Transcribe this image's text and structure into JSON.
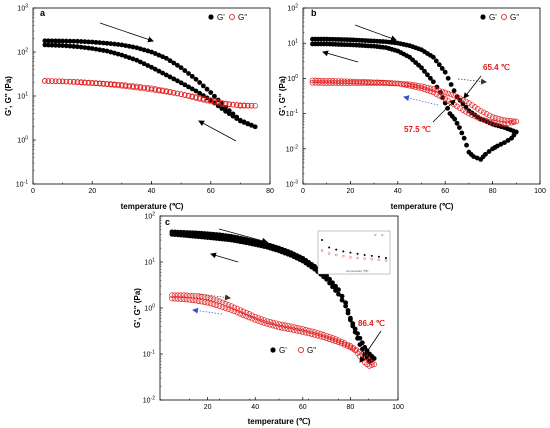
{
  "chart_data": [
    {
      "panel": "a",
      "type": "scatter",
      "xlabel": "temperature (℃)",
      "ylabel": "G', G'' (Pa)",
      "xlim": [
        0,
        80
      ],
      "ylim": [
        0.1,
        1000
      ],
      "yscale": "log",
      "xticks": [
        "0",
        "20",
        "40",
        "60",
        "80"
      ],
      "yticks": [
        {
          "v": 0.1,
          "b": "10",
          "e": "-1"
        },
        {
          "v": 1,
          "b": "10",
          "e": "0"
        },
        {
          "v": 10,
          "b": "10",
          "e": "1"
        },
        {
          "v": 100,
          "b": "10",
          "e": "2"
        },
        {
          "v": 1000,
          "b": "10",
          "e": "3"
        }
      ],
      "legend": {
        "position": "top-right",
        "entries": [
          "G'",
          "G''"
        ]
      },
      "series": [
        {
          "name": "G'",
          "marker": "filled",
          "color": "#000000",
          "points": [
            [
              4,
              180
            ],
            [
              10,
              178
            ],
            [
              15,
              175
            ],
            [
              20,
              168
            ],
            [
              25,
              158
            ],
            [
              30,
              145
            ],
            [
              35,
              125
            ],
            [
              40,
              100
            ],
            [
              45,
              72
            ],
            [
              50,
              44
            ],
            [
              55,
              24
            ],
            [
              60,
              12
            ],
            [
              65,
              5.5
            ],
            [
              70,
              2.8
            ],
            [
              75,
              2.0
            ],
            [
              70,
              2.7
            ],
            [
              65,
              4.5
            ],
            [
              60,
              8
            ],
            [
              55,
              13
            ],
            [
              50,
              20
            ],
            [
              45,
              30
            ],
            [
              40,
              45
            ],
            [
              35,
              65
            ],
            [
              30,
              85
            ],
            [
              25,
              105
            ],
            [
              20,
              120
            ],
            [
              15,
              132
            ],
            [
              10,
              140
            ],
            [
              4,
              145
            ]
          ]
        },
        {
          "name": "G''",
          "marker": "open",
          "color": "#e01b1b",
          "points": [
            [
              4,
              22
            ],
            [
              10,
              21.5
            ],
            [
              15,
              21
            ],
            [
              20,
              20
            ],
            [
              25,
              19
            ],
            [
              30,
              18
            ],
            [
              35,
              16.5
            ],
            [
              40,
              15
            ],
            [
              45,
              13
            ],
            [
              50,
              11
            ],
            [
              55,
              9
            ],
            [
              60,
              7.5
            ],
            [
              65,
              6.5
            ],
            [
              70,
              6.2
            ],
            [
              75,
              6.0
            ],
            [
              70,
              6.0
            ],
            [
              65,
              6.8
            ],
            [
              60,
              8
            ],
            [
              55,
              9.5
            ],
            [
              50,
              11
            ],
            [
              45,
              12.5
            ],
            [
              40,
              14
            ],
            [
              35,
              15.5
            ],
            [
              30,
              17
            ],
            [
              25,
              18.5
            ],
            [
              20,
              19.5
            ],
            [
              15,
              20.5
            ],
            [
              10,
              21.5
            ],
            [
              4,
              22
            ]
          ]
        }
      ]
    },
    {
      "panel": "b",
      "type": "scatter",
      "xlabel": "temperature (℃)",
      "ylabel": "G', G'' (Pa)",
      "xlim": [
        0,
        100
      ],
      "ylim": [
        0.001,
        100
      ],
      "yscale": "log",
      "xticks": [
        "0",
        "20",
        "40",
        "60",
        "80",
        "100"
      ],
      "yticks": [
        {
          "v": 0.001,
          "b": "10",
          "e": "-3"
        },
        {
          "v": 0.01,
          "b": "10",
          "e": "-2"
        },
        {
          "v": 0.1,
          "b": "10",
          "e": "-1"
        },
        {
          "v": 1,
          "b": "10",
          "e": "0"
        },
        {
          "v": 10,
          "b": "10",
          "e": "1"
        },
        {
          "v": 100,
          "b": "10",
          "e": "2"
        }
      ],
      "legend": {
        "position": "top-right",
        "entries": [
          "G'",
          "G''"
        ]
      },
      "annotations": [
        "65.4 ℃",
        "57.5 ℃"
      ],
      "series": [
        {
          "name": "G'",
          "marker": "filled",
          "color": "#000000",
          "points": [
            [
              4,
              13
            ],
            [
              10,
              13
            ],
            [
              15,
              12.8
            ],
            [
              20,
              12.5
            ],
            [
              25,
              12
            ],
            [
              30,
              11.5
            ],
            [
              35,
              11
            ],
            [
              40,
              10
            ],
            [
              45,
              8.5
            ],
            [
              50,
              6.5
            ],
            [
              55,
              4
            ],
            [
              60,
              1.5
            ],
            [
              65,
              0.3
            ],
            [
              70,
              0.12
            ],
            [
              75,
              0.07
            ],
            [
              80,
              0.05
            ],
            [
              85,
              0.04
            ],
            [
              90,
              0.03
            ],
            [
              88,
              0.02
            ],
            [
              85,
              0.015
            ],
            [
              82,
              0.012
            ],
            [
              80,
              0.01
            ],
            [
              77,
              0.007
            ],
            [
              75,
              0.005
            ],
            [
              72,
              0.006
            ],
            [
              70,
              0.008
            ],
            [
              68,
              0.02
            ],
            [
              66,
              0.04
            ],
            [
              64,
              0.07
            ],
            [
              62,
              0.1
            ],
            [
              60,
              0.2
            ],
            [
              58,
              0.4
            ],
            [
              55,
              0.8
            ],
            [
              50,
              2
            ],
            [
              45,
              4
            ],
            [
              40,
              6
            ],
            [
              35,
              7.5
            ],
            [
              30,
              8.2
            ],
            [
              25,
              8.6
            ],
            [
              20,
              9
            ],
            [
              15,
              9.2
            ],
            [
              10,
              9.5
            ],
            [
              4,
              9.5
            ]
          ]
        },
        {
          "name": "G''",
          "marker": "open",
          "color": "#e01b1b",
          "points": [
            [
              4,
              0.75
            ],
            [
              10,
              0.74
            ],
            [
              15,
              0.74
            ],
            [
              20,
              0.74
            ],
            [
              25,
              0.74
            ],
            [
              30,
              0.74
            ],
            [
              35,
              0.73
            ],
            [
              40,
              0.71
            ],
            [
              45,
              0.68
            ],
            [
              50,
              0.6
            ],
            [
              55,
              0.5
            ],
            [
              60,
              0.4
            ],
            [
              65,
              0.3
            ],
            [
              70,
              0.2
            ],
            [
              75,
              0.12
            ],
            [
              80,
              0.08
            ],
            [
              85,
              0.065
            ],
            [
              90,
              0.06
            ],
            [
              88,
              0.055
            ],
            [
              85,
              0.05
            ],
            [
              80,
              0.055
            ],
            [
              75,
              0.07
            ],
            [
              70,
              0.1
            ],
            [
              65,
              0.16
            ],
            [
              60,
              0.26
            ],
            [
              55,
              0.4
            ],
            [
              50,
              0.52
            ],
            [
              45,
              0.62
            ],
            [
              40,
              0.72
            ],
            [
              35,
              0.76
            ],
            [
              30,
              0.78
            ],
            [
              25,
              0.8
            ],
            [
              20,
              0.82
            ],
            [
              15,
              0.84
            ],
            [
              10,
              0.86
            ],
            [
              4,
              0.88
            ]
          ]
        }
      ]
    },
    {
      "panel": "c",
      "type": "scatter",
      "xlabel": "temperature (℃)",
      "ylabel": "G', G'' (Pa)",
      "xlim": [
        0,
        100
      ],
      "ylim": [
        0.01,
        100
      ],
      "yscale": "log",
      "xticks": [
        "20",
        "40",
        "60",
        "80",
        "100"
      ],
      "yticks": [
        {
          "v": 0.01,
          "b": "10",
          "e": "-2"
        },
        {
          "v": 0.1,
          "b": "10",
          "e": "-1"
        },
        {
          "v": 1,
          "b": "10",
          "e": "0"
        },
        {
          "v": 10,
          "b": "10",
          "e": "1"
        },
        {
          "v": 100,
          "b": "10",
          "e": "2"
        }
      ],
      "legend": {
        "position": "bottom-right",
        "entries": [
          "G'",
          "G''"
        ]
      },
      "annotations": [
        "86.4 ℃"
      ],
      "series": [
        {
          "name": "G'",
          "marker": "filled",
          "color": "#000000",
          "points": [
            [
              5,
              45
            ],
            [
              10,
              44
            ],
            [
              15,
              43
            ],
            [
              20,
              41
            ],
            [
              25,
              39
            ],
            [
              30,
              36
            ],
            [
              35,
              32
            ],
            [
              40,
              28
            ],
            [
              45,
              24
            ],
            [
              50,
              20
            ],
            [
              55,
              16
            ],
            [
              60,
              12
            ],
            [
              65,
              8
            ],
            [
              70,
              5
            ],
            [
              75,
              2.5
            ],
            [
              78,
              1.3
            ],
            [
              80,
              0.6
            ],
            [
              82,
              0.35
            ],
            [
              84,
              0.22
            ],
            [
              86,
              0.14
            ],
            [
              88,
              0.1
            ],
            [
              90,
              0.08
            ],
            [
              88,
              0.07
            ],
            [
              86,
              0.1
            ],
            [
              84,
              0.16
            ],
            [
              82,
              0.3
            ],
            [
              80,
              0.55
            ],
            [
              78,
              1.1
            ],
            [
              75,
              2
            ],
            [
              70,
              4.2
            ],
            [
              65,
              7
            ],
            [
              60,
              10.5
            ],
            [
              55,
              14
            ],
            [
              50,
              17.5
            ],
            [
              45,
              21
            ],
            [
              40,
              24
            ],
            [
              35,
              27
            ],
            [
              30,
              30
            ],
            [
              25,
              32
            ],
            [
              20,
              34
            ],
            [
              15,
              36
            ],
            [
              10,
              38
            ],
            [
              5,
              40
            ]
          ]
        },
        {
          "name": "G''",
          "marker": "open",
          "color": "#e01b1b",
          "points": [
            [
              5,
              1.9
            ],
            [
              10,
              1.9
            ],
            [
              15,
              1.85
            ],
            [
              20,
              1.7
            ],
            [
              25,
              1.4
            ],
            [
              30,
              1.1
            ],
            [
              35,
              0.85
            ],
            [
              40,
              0.65
            ],
            [
              45,
              0.52
            ],
            [
              50,
              0.45
            ],
            [
              55,
              0.4
            ],
            [
              60,
              0.35
            ],
            [
              65,
              0.3
            ],
            [
              70,
              0.25
            ],
            [
              75,
              0.2
            ],
            [
              80,
              0.15
            ],
            [
              85,
              0.1
            ],
            [
              88,
              0.07
            ],
            [
              90,
              0.06
            ],
            [
              88,
              0.055
            ],
            [
              86,
              0.065
            ],
            [
              84,
              0.09
            ],
            [
              82,
              0.12
            ],
            [
              80,
              0.14
            ],
            [
              75,
              0.18
            ],
            [
              70,
              0.22
            ],
            [
              65,
              0.26
            ],
            [
              60,
              0.3
            ],
            [
              55,
              0.34
            ],
            [
              50,
              0.38
            ],
            [
              45,
              0.45
            ],
            [
              40,
              0.55
            ],
            [
              35,
              0.7
            ],
            [
              30,
              0.9
            ],
            [
              25,
              1.1
            ],
            [
              20,
              1.3
            ],
            [
              15,
              1.45
            ],
            [
              10,
              1.55
            ],
            [
              5,
              1.6
            ]
          ]
        }
      ]
    }
  ]
}
